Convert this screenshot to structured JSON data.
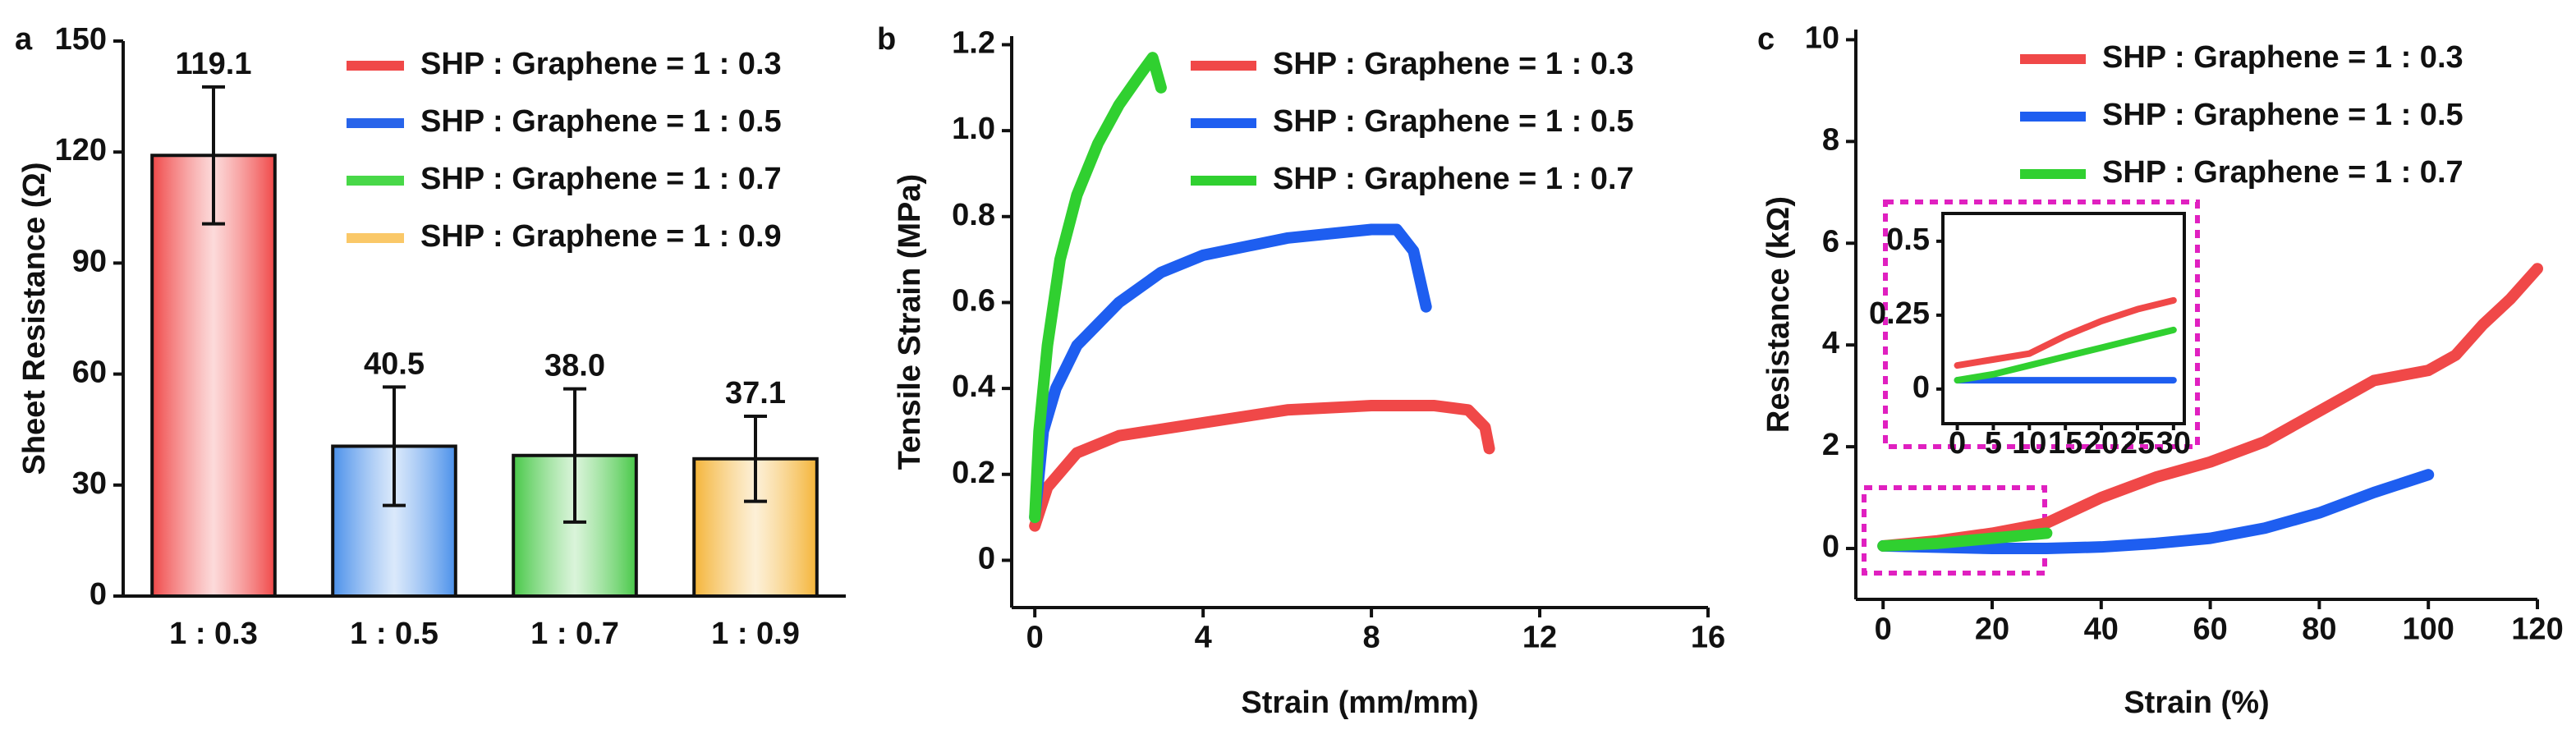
{
  "chart_data": [
    {
      "type": "bar",
      "panel_label": "a",
      "ylabel": "Sheet Resistance (Ω)",
      "categories": [
        "1 : 0.3",
        "1 : 0.5",
        "1 : 0.7",
        "1 : 0.9"
      ],
      "values": [
        119.1,
        40.5,
        38.0,
        37.1
      ],
      "value_labels": [
        "119.1",
        "40.5",
        "38.0",
        "37.1"
      ],
      "errors": [
        18.5,
        16,
        18,
        11.5
      ],
      "colors": [
        "#f04848",
        "#4a90ea",
        "#48c848",
        "#f4b438"
      ],
      "legend_labels": [
        "SHP : Graphene = 1 : 0.3",
        "SHP : Graphene = 1 : 0.5",
        "SHP : Graphene = 1 : 0.7",
        "SHP : Graphene = 1 : 0.9"
      ],
      "legend_colors": [
        "#f04848",
        "#2864ea",
        "#48d848",
        "#fac868"
      ],
      "legend": "upper right",
      "ylim": [
        0,
        150
      ],
      "yticks": [
        0,
        30,
        60,
        90,
        120,
        150
      ]
    },
    {
      "type": "line",
      "panel_label": "b",
      "xlabel": "Strain (mm/mm)",
      "ylabel": "Tensile Strain (MPa)",
      "legend": "upper right",
      "xlim": [
        -0.55,
        16
      ],
      "xticks": [
        0,
        4,
        8,
        12,
        16
      ],
      "ylim": [
        -0.11,
        1.22
      ],
      "yticks": [
        0,
        0.2,
        0.4,
        0.6,
        0.8,
        {
          "value": 1,
          "label": "1.0"
        },
        1.2
      ],
      "series": [
        {
          "name": "SHP : Graphene = 1 : 0.3",
          "color": "#f04848",
          "x": [
            0,
            0.3,
            1,
            2,
            4,
            6,
            8,
            9.5,
            10.3,
            10.7,
            10.8
          ],
          "values": [
            0.08,
            0.17,
            0.25,
            0.29,
            0.32,
            0.35,
            0.36,
            0.36,
            0.35,
            0.31,
            0.26
          ]
        },
        {
          "name": "SHP : Graphene = 1 : 0.5",
          "color": "#1e5ef0",
          "x": [
            0,
            0.2,
            0.5,
            1,
            2,
            3,
            4,
            6,
            8,
            8.6,
            9,
            9.3
          ],
          "values": [
            0.1,
            0.3,
            0.4,
            0.5,
            0.6,
            0.67,
            0.71,
            0.75,
            0.77,
            0.77,
            0.72,
            0.59
          ]
        },
        {
          "name": "SHP : Graphene = 1 : 0.7",
          "color": "#30d030",
          "x": [
            0,
            0.1,
            0.3,
            0.6,
            1,
            1.5,
            2,
            2.5,
            2.8,
            3
          ],
          "values": [
            0.1,
            0.3,
            0.5,
            0.7,
            0.85,
            0.97,
            1.06,
            1.13,
            1.17,
            1.1
          ]
        }
      ]
    },
    {
      "type": "line",
      "panel_label": "c",
      "xlabel": "Strain (%)",
      "ylabel": "Resistance (kΩ)",
      "legend": "upper right",
      "xlim": [
        -5,
        120
      ],
      "xticks": [
        0,
        20,
        40,
        60,
        80,
        100,
        120
      ],
      "ylim": [
        -1,
        10.2
      ],
      "yticks": [
        0,
        2,
        4,
        6,
        8,
        10
      ],
      "series": [
        {
          "name": "SHP : Graphene = 1 : 0.3",
          "color": "#f04848",
          "x": [
            0,
            10,
            20,
            30,
            40,
            50,
            60,
            70,
            80,
            90,
            100,
            105,
            110,
            115,
            120
          ],
          "values": [
            0.05,
            0.15,
            0.3,
            0.5,
            1.0,
            1.4,
            1.7,
            2.1,
            2.7,
            3.3,
            3.5,
            3.8,
            4.4,
            4.9,
            5.5
          ]
        },
        {
          "name": "SHP : Graphene = 1 : 0.5",
          "color": "#1e5ef0",
          "x": [
            0,
            20,
            30,
            40,
            50,
            60,
            70,
            80,
            90,
            100
          ],
          "values": [
            0.05,
            0,
            0,
            0.03,
            0.1,
            0.2,
            0.4,
            0.7,
            1.1,
            1.45
          ]
        },
        {
          "name": "SHP : Graphene = 1 : 0.7",
          "color": "#30d030",
          "x": [
            0,
            10,
            20,
            30
          ],
          "values": [
            0.05,
            0.1,
            0.2,
            0.3
          ]
        }
      ]
    },
    {
      "type": "line",
      "frame": true,
      "xlim": [
        -2,
        31.5
      ],
      "xticks": [
        0,
        5,
        10,
        15,
        20,
        25,
        30
      ],
      "ylim": [
        -0.117,
        0.594
      ],
      "yticks": [
        0,
        0.25,
        0.5
      ],
      "series": [
        {
          "color": "#f04848",
          "x": [
            0,
            5,
            10,
            15,
            20,
            25,
            30
          ],
          "values": [
            0.08,
            0.1,
            0.12,
            0.18,
            0.23,
            0.27,
            0.3
          ]
        },
        {
          "color": "#1e5ef0",
          "x": [
            0,
            30
          ],
          "values": [
            0.03,
            0.03
          ]
        },
        {
          "color": "#30d030",
          "x": [
            0,
            5,
            10,
            15,
            20,
            25,
            30
          ],
          "values": [
            0.03,
            0.05,
            0.08,
            0.11,
            0.14,
            0.17,
            0.2
          ]
        }
      ]
    }
  ]
}
